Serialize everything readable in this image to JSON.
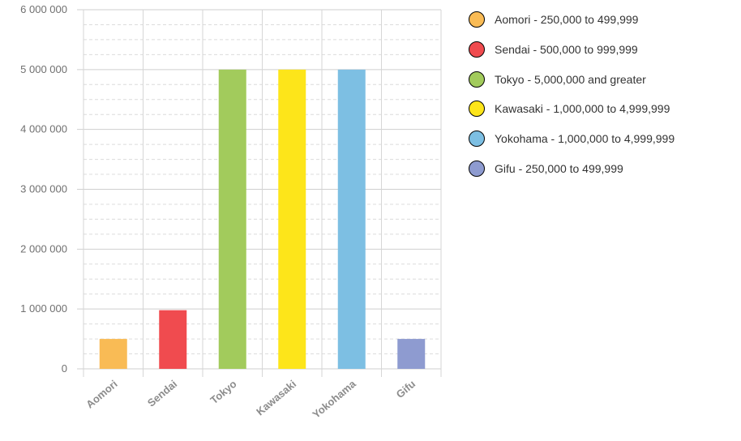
{
  "chart_data": {
    "type": "bar",
    "categories": [
      "Aomori",
      "Sendai",
      "Tokyo",
      "Kawasaki",
      "Yokohama",
      "Gifu"
    ],
    "values": [
      500000,
      980000,
      5000000,
      5000000,
      5000000,
      500000
    ],
    "colors": [
      "#f9bb55",
      "#f04b4f",
      "#a2cb5c",
      "#fde51a",
      "#7dbfe3",
      "#8e9bd0"
    ],
    "ylim": [
      0,
      6000000
    ],
    "yticks": [
      0,
      1000000,
      2000000,
      3000000,
      4000000,
      5000000,
      6000000
    ],
    "ytick_labels": [
      "0",
      "1 000 000",
      "2 000 000",
      "3 000 000",
      "4 000 000",
      "5 000 000",
      "6 000 000"
    ],
    "grid": true,
    "legend_position": "right",
    "legend": [
      {
        "label": "Aomori - 250,000 to 499,999",
        "color": "#f9bb55"
      },
      {
        "label": "Sendai - 500,000 to 999,999",
        "color": "#f04b4f"
      },
      {
        "label": "Tokyo - 5,000,000 and greater",
        "color": "#a2cb5c"
      },
      {
        "label": "Kawasaki - 1,000,000 to 4,999,999",
        "color": "#fde51a"
      },
      {
        "label": "Yokohama - 1,000,000 to 4,999,999",
        "color": "#7dbfe3"
      },
      {
        "label": "Gifu - 250,000 to 499,999",
        "color": "#8e9bd0"
      }
    ]
  }
}
